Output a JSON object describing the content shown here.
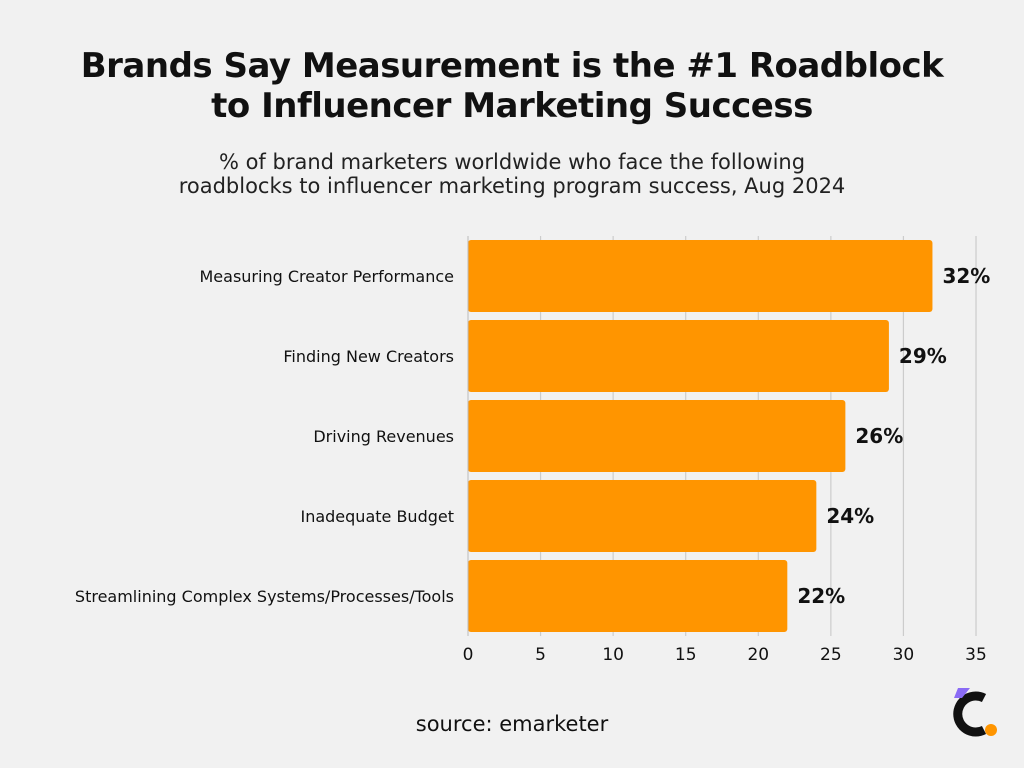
{
  "header": {
    "title_lines": [
      "Brands Say Measurement is the #1 Roadblock",
      "to Influencer Marketing Success"
    ],
    "subtitle_lines": [
      "% of brand marketers worldwide who face the following",
      "roadblocks to influencer marketing program success, Aug 2024"
    ]
  },
  "chart_data": {
    "type": "bar",
    "orientation": "horizontal",
    "categories": [
      "Measuring Creator Performance",
      "Finding New Creators",
      "Driving Revenues",
      "Inadequate Budget",
      "Streamlining Complex Systems/Processes/Tools"
    ],
    "values": [
      32,
      29,
      26,
      24,
      22
    ],
    "value_labels": [
      "32%",
      "29%",
      "26%",
      "24%",
      "22%"
    ],
    "xlim": [
      0,
      35
    ],
    "xticks": [
      "0",
      "5",
      "10",
      "15",
      "20",
      "25",
      "30",
      "35"
    ],
    "grid": true,
    "bar_color": "#ff9500"
  },
  "footer": {
    "source": "source: emarketer"
  },
  "colors": {
    "background": "#f1f1f1",
    "bar": "#ff9500",
    "grid": "#cccccc",
    "logo_dark": "#111111",
    "logo_purple": "#8a6bf5",
    "logo_orange": "#ff9500"
  },
  "logo": {
    "icon": "brand-logo-icon"
  }
}
